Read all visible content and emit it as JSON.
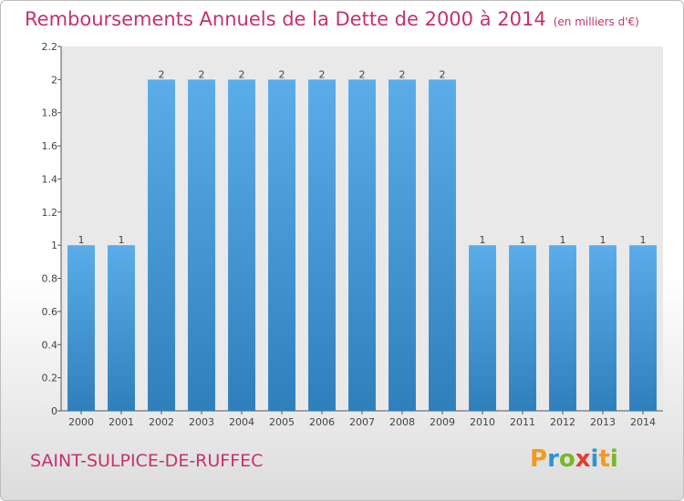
{
  "title": "Remboursements Annuels de la Dette de 2000 à 2014",
  "subtitle": "(en milliers d'€)",
  "city": "SAINT-SULPICE-DE-RUFFEC",
  "logo": {
    "text": "Proxiti",
    "letters": [
      "P",
      "r",
      "o",
      "x",
      "i",
      "t",
      "i"
    ],
    "colors": [
      "#f39a1e",
      "#2f93d3",
      "#7ab629",
      "#e23b2f",
      "#2f93d3",
      "#f39a1e",
      "#7ab629"
    ]
  },
  "colors": {
    "title": "#c5316e",
    "bar_top": "#5aade9",
    "bar_bottom": "#2f7fbd",
    "plot_bg": "#e9e9e9"
  },
  "chart_data": {
    "type": "bar",
    "title": "Remboursements Annuels de la Dette de 2000 à 2014",
    "subtitle": "(en milliers d'€)",
    "categories": [
      "2000",
      "2001",
      "2002",
      "2003",
      "2004",
      "2005",
      "2006",
      "2007",
      "2008",
      "2009",
      "2010",
      "2011",
      "2012",
      "2013",
      "2014"
    ],
    "values": [
      1,
      1,
      2,
      2,
      2,
      2,
      2,
      2,
      2,
      2,
      1,
      1,
      1,
      1,
      1
    ],
    "data_labels": [
      "1",
      "1",
      "2",
      "2",
      "2",
      "2",
      "2",
      "2",
      "2",
      "2",
      "1",
      "1",
      "1",
      "1",
      "1"
    ],
    "ylim": [
      0,
      2.2
    ],
    "yticks": [
      0,
      0.2,
      0.4,
      0.6,
      0.8,
      1,
      1.2,
      1.4,
      1.6,
      1.8,
      2,
      2.2
    ],
    "ytick_labels": [
      "0",
      "0.2",
      "0.4",
      "0.6",
      "0.8",
      "1",
      "1.2",
      "1.4",
      "1.6",
      "1.8",
      "2",
      "2.2"
    ],
    "xlabel": "",
    "ylabel": "",
    "grid": false,
    "legend": "none"
  }
}
